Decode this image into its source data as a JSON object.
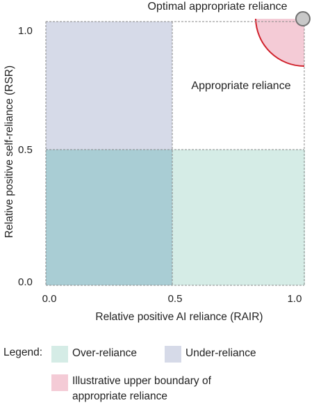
{
  "diagram": {
    "optimal_label": "Optimal appropriate reliance",
    "appropriate_label": "Appropriate reliance",
    "y_axis_title": "Relative positive self-reliance (RSR)",
    "x_axis_title": "Relative positive AI reliance (RAIR)",
    "y_ticks": [
      "1.0",
      "0.5",
      "0.0"
    ],
    "x_ticks": [
      "0.0",
      "0.5",
      "1.0"
    ],
    "threshold_x": 0.5,
    "threshold_y": 0.5,
    "optimal_point": [
      1.0,
      1.0
    ],
    "boundary_radius": 0.19
  },
  "legend": {
    "title": "Legend:",
    "over_reliance": "Over-reliance",
    "under_reliance": "Under-reliance",
    "boundary_line1": "Illustrative upper boundary of",
    "boundary_line2": "appropriate reliance"
  },
  "colors": {
    "over_reliance": "#d5ece6",
    "under_reliance": "#d6dae8",
    "overlap": "#a9cdd4",
    "boundary_fill": "#f4cbd6",
    "boundary_stroke": "#d0202a",
    "point_fill": "#c8c8c8",
    "point_stroke": "#707070",
    "dashed_line": "#888888"
  }
}
